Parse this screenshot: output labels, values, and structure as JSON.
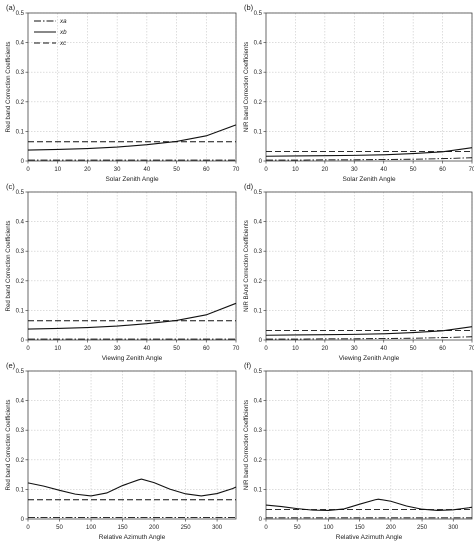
{
  "chart_data": [
    {
      "panel_label": "(a)",
      "type": "line",
      "xlabel": "Solar Zenith Angle",
      "ylabel": "Red band Correction Coefficients",
      "xlim": [
        0,
        70
      ],
      "ylim": [
        0,
        0.5
      ],
      "xticks": [
        0,
        10,
        20,
        30,
        40,
        50,
        60,
        70
      ],
      "yticks": [
        0,
        0.1,
        0.2,
        0.3,
        0.4,
        0.5
      ],
      "grid": true,
      "legend": {
        "placement": "top-left",
        "entries": [
          "xa",
          "xb",
          "xc"
        ]
      },
      "x": [
        0,
        10,
        20,
        30,
        40,
        50,
        60,
        70
      ],
      "series": [
        {
          "name": "xa",
          "values": [
            0.003,
            0.003,
            0.003,
            0.003,
            0.003,
            0.003,
            0.003,
            0.003
          ]
        },
        {
          "name": "xb",
          "values": [
            0.037,
            0.039,
            0.042,
            0.047,
            0.055,
            0.066,
            0.085,
            0.122
          ]
        },
        {
          "name": "xc",
          "values": [
            0.065,
            0.065,
            0.065,
            0.065,
            0.065,
            0.065,
            0.065,
            0.065
          ]
        }
      ]
    },
    {
      "panel_label": "(b)",
      "type": "line",
      "xlabel": "Solar Zenith Angle",
      "ylabel": "NIR band Correction Coefficients",
      "xlim": [
        0,
        70
      ],
      "ylim": [
        0,
        0.5
      ],
      "xticks": [
        0,
        10,
        20,
        30,
        40,
        50,
        60,
        70
      ],
      "yticks": [
        0,
        0.1,
        0.2,
        0.3,
        0.4,
        0.5
      ],
      "grid": true,
      "x": [
        0,
        10,
        20,
        30,
        40,
        50,
        60,
        70
      ],
      "series": [
        {
          "name": "xa",
          "values": [
            0.003,
            0.003,
            0.004,
            0.004,
            0.005,
            0.006,
            0.008,
            0.011
          ]
        },
        {
          "name": "xb",
          "values": [
            0.016,
            0.017,
            0.018,
            0.019,
            0.021,
            0.025,
            0.031,
            0.045
          ]
        },
        {
          "name": "xc",
          "values": [
            0.032,
            0.032,
            0.032,
            0.032,
            0.032,
            0.032,
            0.032,
            0.032
          ]
        }
      ]
    },
    {
      "panel_label": "(c)",
      "type": "line",
      "xlabel": "Viewing Zenith Angle",
      "ylabel": "Red band Correction Coefficients",
      "xlim": [
        0,
        70
      ],
      "ylim": [
        0,
        0.5
      ],
      "xticks": [
        0,
        10,
        20,
        30,
        40,
        50,
        60,
        70
      ],
      "yticks": [
        0,
        0.1,
        0.2,
        0.3,
        0.4,
        0.5
      ],
      "grid": true,
      "x": [
        0,
        10,
        20,
        30,
        40,
        50,
        60,
        70
      ],
      "series": [
        {
          "name": "xa",
          "values": [
            0.003,
            0.003,
            0.003,
            0.003,
            0.003,
            0.003,
            0.003,
            0.003
          ]
        },
        {
          "name": "xb",
          "values": [
            0.037,
            0.039,
            0.042,
            0.047,
            0.055,
            0.066,
            0.085,
            0.124
          ]
        },
        {
          "name": "xc",
          "values": [
            0.065,
            0.065,
            0.065,
            0.065,
            0.065,
            0.065,
            0.065,
            0.065
          ]
        }
      ]
    },
    {
      "panel_label": "(d)",
      "type": "line",
      "xlabel": "Viewing Zenith Angle",
      "ylabel": "NIR BAnd Correction Coefficients",
      "xlim": [
        0,
        70
      ],
      "ylim": [
        0,
        0.5
      ],
      "xticks": [
        0,
        10,
        20,
        30,
        40,
        50,
        60,
        70
      ],
      "yticks": [
        0,
        0.1,
        0.2,
        0.3,
        0.4,
        0.5
      ],
      "grid": true,
      "x": [
        0,
        10,
        20,
        30,
        40,
        50,
        60,
        70
      ],
      "series": [
        {
          "name": "xa",
          "values": [
            0.003,
            0.003,
            0.004,
            0.004,
            0.005,
            0.006,
            0.008,
            0.011
          ]
        },
        {
          "name": "xb",
          "values": [
            0.016,
            0.017,
            0.018,
            0.019,
            0.021,
            0.025,
            0.031,
            0.045
          ]
        },
        {
          "name": "xc",
          "values": [
            0.032,
            0.032,
            0.032,
            0.032,
            0.032,
            0.032,
            0.032,
            0.032
          ]
        }
      ]
    },
    {
      "panel_label": "(e)",
      "type": "line",
      "xlabel": "Relative Azimuth Angle",
      "ylabel": "Red band Correction Coefficients",
      "xlim": [
        0,
        330
      ],
      "ylim": [
        0,
        0.5
      ],
      "xticks": [
        0,
        50,
        100,
        150,
        200,
        250,
        300
      ],
      "yticks": [
        0,
        0.1,
        0.2,
        0.3,
        0.4,
        0.5
      ],
      "grid": true,
      "x": [
        0,
        25,
        50,
        75,
        100,
        125,
        150,
        175,
        180,
        200,
        225,
        250,
        275,
        300,
        325,
        330
      ],
      "series": [
        {
          "name": "xa",
          "values": [
            0.005,
            0.005,
            0.005,
            0.005,
            0.005,
            0.005,
            0.005,
            0.005,
            0.005,
            0.005,
            0.005,
            0.005,
            0.005,
            0.005,
            0.005,
            0.005
          ]
        },
        {
          "name": "xb",
          "values": [
            0.122,
            0.111,
            0.097,
            0.084,
            0.078,
            0.088,
            0.113,
            0.132,
            0.135,
            0.123,
            0.101,
            0.085,
            0.078,
            0.086,
            0.103,
            0.108
          ]
        },
        {
          "name": "xc",
          "values": [
            0.065,
            0.065,
            0.065,
            0.065,
            0.065,
            0.065,
            0.065,
            0.065,
            0.065,
            0.065,
            0.065,
            0.065,
            0.065,
            0.065,
            0.065,
            0.065
          ]
        }
      ]
    },
    {
      "panel_label": "(f)",
      "type": "line",
      "xlabel": "Relative Azimuth Angle",
      "ylabel": "NIR band Correction Coefficients",
      "xlim": [
        0,
        330
      ],
      "ylim": [
        0,
        0.5
      ],
      "xticks": [
        0,
        50,
        100,
        150,
        200,
        250,
        300
      ],
      "yticks": [
        0,
        0.1,
        0.2,
        0.3,
        0.4,
        0.5
      ],
      "grid": true,
      "x": [
        0,
        25,
        50,
        75,
        100,
        125,
        150,
        175,
        180,
        200,
        225,
        250,
        275,
        300,
        325,
        330
      ],
      "series": [
        {
          "name": "xa",
          "values": [
            0.004,
            0.004,
            0.004,
            0.004,
            0.004,
            0.004,
            0.004,
            0.004,
            0.004,
            0.004,
            0.004,
            0.004,
            0.004,
            0.004,
            0.004,
            0.004
          ]
        },
        {
          "name": "xb",
          "values": [
            0.047,
            0.042,
            0.035,
            0.03,
            0.029,
            0.034,
            0.05,
            0.065,
            0.067,
            0.06,
            0.044,
            0.033,
            0.029,
            0.031,
            0.038,
            0.04
          ]
        },
        {
          "name": "xc",
          "values": [
            0.032,
            0.032,
            0.032,
            0.032,
            0.032,
            0.032,
            0.032,
            0.032,
            0.032,
            0.032,
            0.032,
            0.032,
            0.032,
            0.032,
            0.032,
            0.032
          ]
        }
      ]
    }
  ]
}
